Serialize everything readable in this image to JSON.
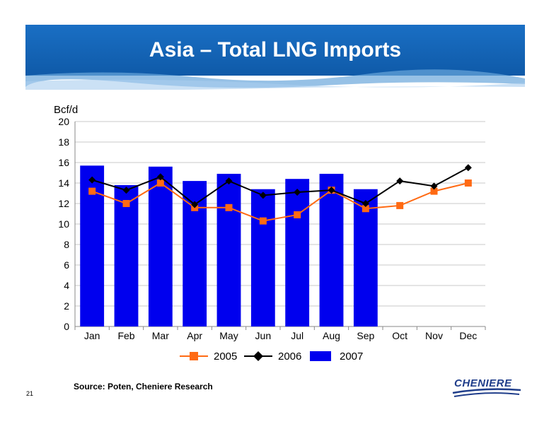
{
  "slide": {
    "title": "Asia – Total LNG Imports",
    "source": "Source: Poten, Cheniere Research",
    "page_number": "21",
    "logo_text": "CHENIERE"
  },
  "colors": {
    "banner": "#1565b9",
    "bar": "#0000ee",
    "line2005": "#ff6a13",
    "line2006": "#000000",
    "grid": "#c9c9c9"
  },
  "chart_data": {
    "type": "bar",
    "ylabel": "Bcf/d",
    "ylim": [
      0,
      20
    ],
    "yticks": [
      0,
      2,
      4,
      6,
      8,
      10,
      12,
      14,
      16,
      18,
      20
    ],
    "grid": true,
    "legend_position": "bottom",
    "categories": [
      "Jan",
      "Feb",
      "Mar",
      "Apr",
      "May",
      "Jun",
      "Jul",
      "Aug",
      "Sep",
      "Oct",
      "Nov",
      "Dec"
    ],
    "series": [
      {
        "name": "2005",
        "type": "line",
        "marker": "square",
        "values": [
          13.2,
          12.0,
          14.0,
          11.6,
          11.6,
          10.3,
          10.9,
          13.3,
          11.5,
          11.8,
          13.2,
          14.0
        ]
      },
      {
        "name": "2006",
        "type": "line",
        "marker": "diamond",
        "values": [
          14.3,
          13.3,
          14.6,
          11.9,
          14.2,
          12.8,
          13.1,
          13.3,
          12.0,
          14.2,
          13.7,
          15.5
        ]
      },
      {
        "name": "2007",
        "type": "bar",
        "values": [
          15.7,
          13.8,
          15.6,
          14.2,
          14.9,
          13.4,
          14.4,
          14.9,
          13.4,
          null,
          null,
          null
        ]
      }
    ]
  }
}
